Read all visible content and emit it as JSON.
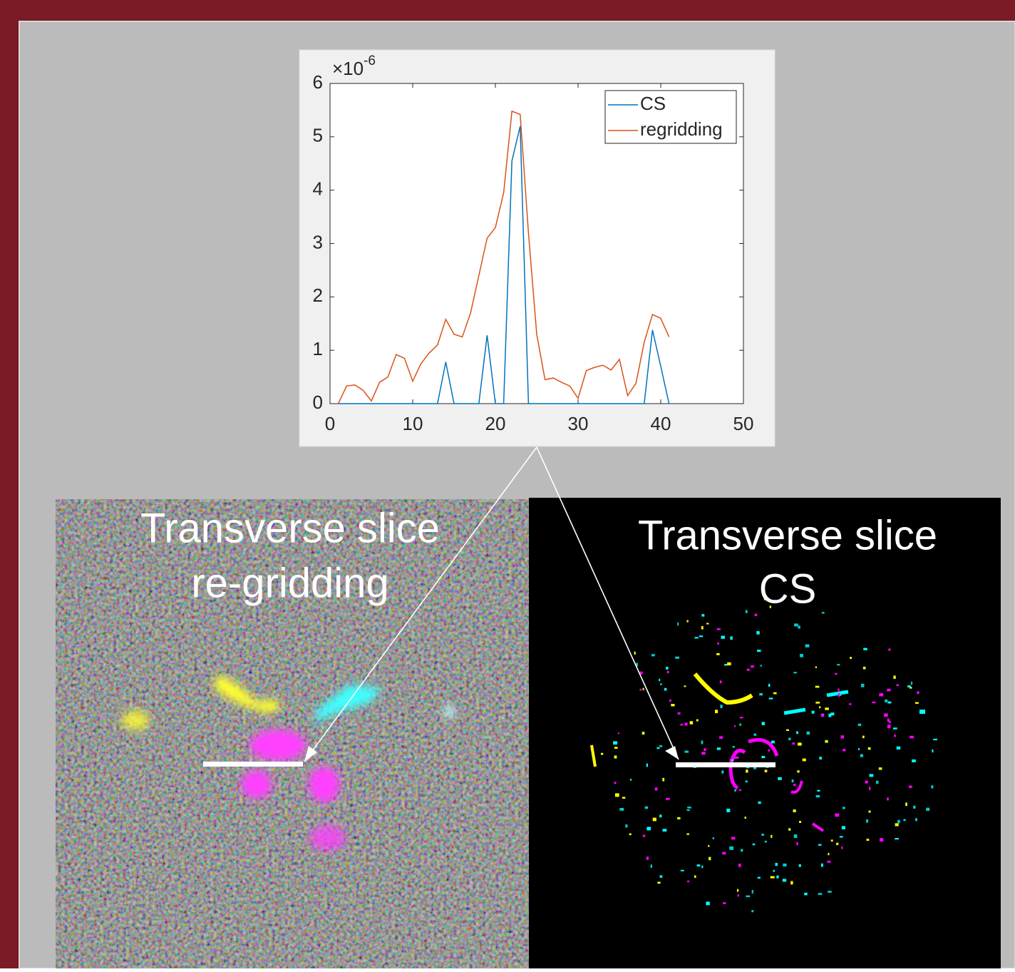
{
  "chart_data": {
    "type": "line",
    "y_multiplier": "×10",
    "y_multiplier_exponent": "-6",
    "x": [
      1,
      2,
      3,
      4,
      5,
      6,
      7,
      8,
      9,
      10,
      11,
      12,
      13,
      14,
      15,
      16,
      17,
      18,
      19,
      20,
      21,
      22,
      23,
      24,
      25,
      26,
      27,
      28,
      29,
      30,
      31,
      32,
      33,
      34,
      35,
      36,
      37,
      38,
      39,
      40,
      41
    ],
    "series": [
      {
        "name": "CS",
        "color": "#0072bd",
        "values": [
          0,
          0,
          0,
          0,
          0,
          0,
          0,
          0,
          0,
          0,
          0,
          0,
          0,
          0.78,
          0,
          0,
          0,
          0,
          1.28,
          0,
          0,
          4.55,
          5.2,
          0,
          0,
          0,
          0,
          0,
          0,
          0,
          0,
          0,
          0,
          0,
          0,
          0,
          0,
          0,
          1.38,
          0.7,
          0
        ]
      },
      {
        "name": "regridding",
        "color": "#d95319",
        "values": [
          0,
          0.33,
          0.35,
          0.25,
          0.05,
          0.4,
          0.5,
          0.92,
          0.85,
          0.42,
          0.75,
          0.95,
          1.1,
          1.58,
          1.3,
          1.25,
          1.7,
          2.4,
          3.1,
          3.3,
          3.95,
          5.48,
          5.42,
          3.2,
          1.3,
          0.45,
          0.48,
          0.4,
          0.33,
          0.1,
          0.62,
          0.68,
          0.72,
          0.63,
          0.83,
          0.15,
          0.38,
          1.15,
          1.67,
          1.6,
          1.25
        ]
      }
    ],
    "xlim": [
      0,
      50
    ],
    "xticks": [
      0,
      10,
      20,
      30,
      40,
      50
    ],
    "ylim": [
      0,
      6
    ],
    "yticks": [
      0,
      1,
      2,
      3,
      4,
      5,
      6
    ],
    "legend": "top-right"
  },
  "panels": [
    {
      "title_lines": [
        "Transverse slice",
        "re-gridding"
      ]
    },
    {
      "title_lines": [
        "Transverse slice",
        "CS"
      ]
    }
  ]
}
